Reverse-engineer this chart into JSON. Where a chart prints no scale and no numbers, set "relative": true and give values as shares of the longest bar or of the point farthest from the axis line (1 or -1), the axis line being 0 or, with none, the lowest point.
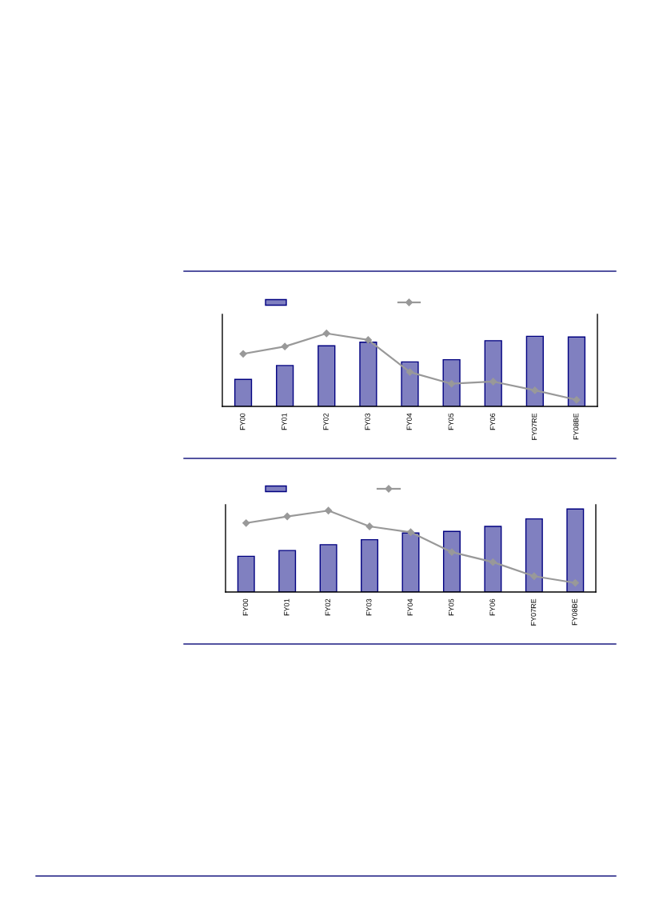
{
  "chart_data": [
    {
      "type": "bar",
      "categories": [
        "FY00",
        "FY01",
        "FY02",
        "FY03",
        "FY04",
        "FY05",
        "FY06",
        "FY07RE",
        "FY08BE"
      ],
      "relative": true,
      "tick_labels": "x",
      "marker": "diamond",
      "line_style": "solid",
      "series": [
        {
          "color": "#8080c0",
          "values": [
            0.37,
            0.56,
            0.83,
            0.88,
            0.61,
            0.64,
            0.9,
            0.96,
            0.95
          ]
        },
        {
          "type": "line",
          "color": "#999999",
          "values": [
            0.72,
            0.82,
            1.0,
            0.91,
            0.47,
            0.31,
            0.34,
            0.22,
            0.09
          ]
        }
      ]
    },
    {
      "type": "bar",
      "categories": [
        "FY00",
        "FY01",
        "FY02",
        "FY03",
        "FY04",
        "FY05",
        "FY06",
        "FY07RE",
        "FY08BE"
      ],
      "relative": true,
      "tick_labels": "x",
      "marker": "diamond",
      "line_style": "solid",
      "series": [
        {
          "color": "#8080c0",
          "values": [
            0.43,
            0.5,
            0.57,
            0.63,
            0.71,
            0.73,
            0.79,
            0.88,
            1.0
          ]
        },
        {
          "type": "line",
          "color": "#999999",
          "values": [
            0.83,
            0.91,
            0.98,
            0.79,
            0.72,
            0.48,
            0.36,
            0.19,
            0.11
          ]
        }
      ]
    }
  ]
}
